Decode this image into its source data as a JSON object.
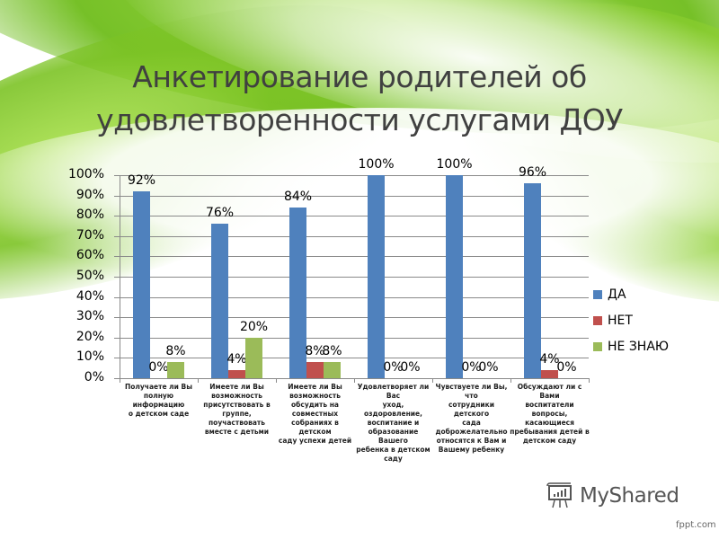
{
  "slide": {
    "title_line1": "Анкетирование родителей об",
    "title_line2": "удовлетворенности услугами ДОУ"
  },
  "watermark": {
    "brand": "MyShared",
    "icon": "presentation-board-icon",
    "footer": "fppt.com"
  },
  "colors": {
    "yes": "#4f81bd",
    "no": "#c0504d",
    "dont_know": "#9bbb59",
    "grid": "#8a8a8a",
    "title": "#404040"
  },
  "chart_data": {
    "type": "bar",
    "title": "Анкетирование родителей об удовлетворенности услугами ДОУ",
    "xlabel": "",
    "ylabel": "",
    "ylim": [
      0,
      100
    ],
    "yticks": [
      "0%",
      "10%",
      "20%",
      "30%",
      "40%",
      "50%",
      "60%",
      "70%",
      "80%",
      "90%",
      "100%"
    ],
    "grid": true,
    "legend_position": "right",
    "categories": [
      "Получаете ли Вы полную информацию о детском саде",
      "Имеете ли Вы возможность присутствовать в группе, поучаствовать вместе с детьми",
      "Имеете ли Вы возможность обсудить на совместных собраниях в детском саду успехи детей",
      "Удовлетворяет ли Вас уход, оздоровление, воспитание и образование Вашего ребенка в детском саду",
      "Чувствуете ли Вы, что сотрудники детского сада доброжелательно относятся к Вам и Вашему ребенку",
      "Обсуждают ли с Вами воспитатели вопросы, касающиеся пребывания детей в детском саду"
    ],
    "category_lines": [
      [
        "Получаете ли Вы",
        "полную информацию",
        "о детском саде"
      ],
      [
        "Имеете ли Вы",
        "возможность",
        "присутствовать в",
        "группе, поучаствовать",
        "вместе с детьми"
      ],
      [
        "Имеете ли Вы",
        "возможность",
        "обсудить на",
        "совместных",
        "собраниях в детском",
        "саду успехи детей"
      ],
      [
        "Удовлетворяет ли Вас",
        "уход, оздоровление,",
        "воспитание и",
        "образование Вашего",
        "ребенка в детском",
        "саду"
      ],
      [
        "Чувствуете ли Вы, что",
        "сотрудники детского",
        "сада",
        "доброжелательно",
        "относятся к Вам и",
        "Вашему ребенку"
      ],
      [
        "Обсуждают ли с Вами",
        "воспитатели вопросы,",
        "касающиеся",
        "пребывания детей в",
        "детском саду"
      ]
    ],
    "series": [
      {
        "name": "ДА",
        "color": "#4f81bd",
        "values": [
          92,
          76,
          84,
          100,
          100,
          96
        ],
        "labels": [
          "92%",
          "76%",
          "84%",
          "100%",
          "100%",
          "96%"
        ]
      },
      {
        "name": "НЕТ",
        "color": "#c0504d",
        "values": [
          0,
          4,
          8,
          0,
          0,
          4
        ],
        "labels": [
          "0%",
          "4%",
          "8%",
          "0%",
          "0%",
          "4%"
        ]
      },
      {
        "name": "НЕ ЗНАЮ",
        "color": "#9bbb59",
        "values": [
          8,
          20,
          8,
          0,
          0,
          0
        ],
        "labels": [
          "8%",
          "20%",
          "8%",
          "0%",
          "0%",
          "0%"
        ]
      }
    ]
  }
}
